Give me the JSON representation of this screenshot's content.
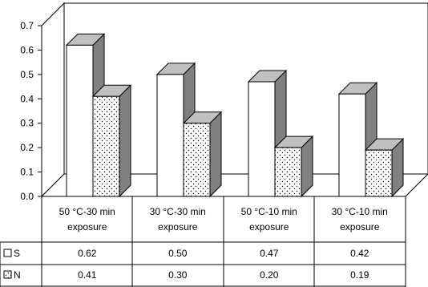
{
  "chart_data": {
    "type": "bar",
    "categories": [
      [
        "50 ",
        "°C",
        "-30 min",
        "exposure"
      ],
      [
        "30 ",
        "°C",
        "-30 min",
        "exposure"
      ],
      [
        "50 ",
        "°C",
        "-10 min",
        "exposure"
      ],
      [
        "30 ",
        "°C",
        "-10 min",
        "exposure"
      ]
    ],
    "series": [
      {
        "name": "S",
        "values": [
          0.62,
          0.5,
          0.47,
          0.42
        ],
        "value_labels": [
          "0.62",
          "0.50",
          "0.47",
          "0.42"
        ],
        "fill": "white"
      },
      {
        "name": "N",
        "values": [
          0.41,
          0.3,
          0.2,
          0.19
        ],
        "value_labels": [
          "0.41",
          "0.30",
          "0.20",
          "0.19"
        ],
        "fill": "dotted"
      }
    ],
    "y_ticks": [
      "0.0",
      "0.1",
      "0.2",
      "0.3",
      "0.4",
      "0.5",
      "0.6",
      "0.7"
    ],
    "ylim": [
      0,
      0.7
    ],
    "title": "",
    "xlabel": "",
    "ylabel": "",
    "grid": false,
    "legend": "data-table",
    "style": "3d-column",
    "colors": {
      "front": "#ffffff",
      "side": "#808080",
      "top": "#c0c0c0",
      "dots": "#000000",
      "outline": "#000000"
    }
  }
}
